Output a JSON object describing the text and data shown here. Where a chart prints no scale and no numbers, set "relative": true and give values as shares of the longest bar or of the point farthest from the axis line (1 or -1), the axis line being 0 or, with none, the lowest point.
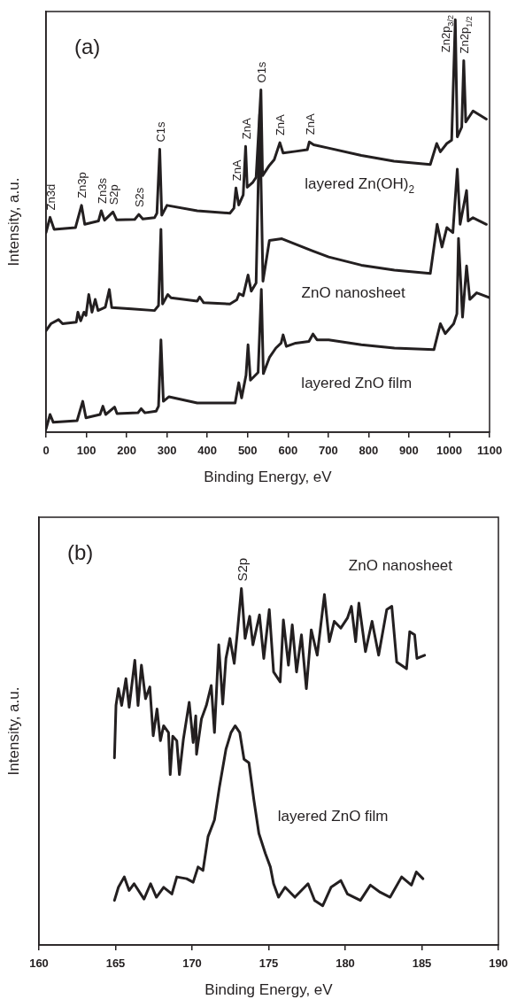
{
  "chart_data": [
    {
      "type": "line",
      "xlabel": "Binding Energy, eV",
      "ylabel": "Intensity, a.u.",
      "relative": true,
      "xlim": [
        0,
        1100
      ],
      "xticks": [
        0,
        100,
        200,
        300,
        400,
        500,
        600,
        700,
        800,
        900,
        1000,
        1100
      ],
      "tick_labels": "x",
      "legend": false,
      "grid": false,
      "marker": "none",
      "line_style": "solid",
      "annotations": [
        "(a)",
        {
          "text": "Zn3d",
          "x": 10,
          "y": 0.521
        },
        {
          "text": "Zn3p",
          "x": 88,
          "y": 0.55
        },
        {
          "text": "Zn3s",
          "x": 137,
          "y": 0.537
        },
        {
          "text": "S2p",
          "x": 166,
          "y": 0.534
        },
        {
          "text": "S2s",
          "x": 230,
          "y": 0.528
        },
        {
          "text": "C1s",
          "x": 282,
          "y": 0.686
        },
        {
          "text": "ZnA",
          "x": 471,
          "y": 0.592
        },
        {
          "text": "ZnA",
          "x": 495,
          "y": 0.693
        },
        {
          "text": "O1s",
          "x": 533,
          "y": 0.83
        },
        {
          "text": "ZnA",
          "x": 580,
          "y": 0.702
        },
        {
          "text": "ZnA",
          "x": 653,
          "y": 0.704
        },
        {
          "text": "Zn2p$_{3/2}$",
          "x": 1015,
          "y": 1.0
        },
        {
          "text": "Zn2p$_{1/2}$",
          "x": 1036,
          "y": 0.901
        }
      ],
      "series": [
        {
          "name": "layered Zn(OH)$_{2}$",
          "color": "#231f20",
          "x": [
            0,
            10,
            20,
            73,
            88,
            96,
            130,
            137,
            145,
            166,
            175,
            220,
            230,
            240,
            269,
            275,
            282,
            287,
            300,
            375,
            456,
            466,
            471,
            478,
            489,
            495,
            499,
            513,
            521,
            533,
            537,
            554,
            566,
            580,
            588,
            619,
            648,
            653,
            664,
            700,
            782,
            863,
            953,
            969,
            978,
            994,
            1006,
            1015,
            1020,
            1031,
            1036,
            1041,
            1059,
            1092
          ],
          "values": [
            0.484,
            0.521,
            0.492,
            0.496,
            0.55,
            0.504,
            0.512,
            0.537,
            0.514,
            0.534,
            0.515,
            0.516,
            0.528,
            0.517,
            0.52,
            0.531,
            0.686,
            0.526,
            0.55,
            0.537,
            0.531,
            0.543,
            0.592,
            0.551,
            0.575,
            0.693,
            0.594,
            0.606,
            0.618,
            0.83,
            0.622,
            0.647,
            0.661,
            0.702,
            0.677,
            0.681,
            0.685,
            0.704,
            0.697,
            0.689,
            0.671,
            0.657,
            0.649,
            0.7,
            0.68,
            0.7,
            0.708,
            1.0,
            0.716,
            0.74,
            0.901,
            0.752,
            0.779,
            0.759
          ]
        },
        {
          "name": "ZnO nanosheet",
          "color": "#231f20",
          "x": [
            0,
            12,
            31,
            41,
            75,
            79,
            86,
            94,
            99,
            106,
            114,
            122,
            129,
            147,
            157,
            163,
            212,
            269,
            279,
            285,
            289,
            302,
            310,
            375,
            381,
            391,
            456,
            473,
            479,
            489,
            501,
            509,
            521,
            530,
            538,
            554,
            585,
            660,
            701,
            782,
            864,
            953,
            970,
            982,
            994,
            1009,
            1020,
            1027,
            1043,
            1047,
            1059,
            1092
          ],
          "values": [
            0.246,
            0.263,
            0.273,
            0.263,
            0.267,
            0.291,
            0.27,
            0.291,
            0.283,
            0.334,
            0.291,
            0.322,
            0.295,
            0.303,
            0.346,
            0.302,
            0.299,
            0.295,
            0.307,
            0.492,
            0.311,
            0.334,
            0.326,
            0.318,
            0.328,
            0.314,
            0.311,
            0.321,
            0.336,
            0.331,
            0.381,
            0.342,
            0.362,
            0.771,
            0.366,
            0.465,
            0.469,
            0.44,
            0.425,
            0.405,
            0.393,
            0.385,
            0.504,
            0.449,
            0.496,
            0.484,
            0.638,
            0.504,
            0.586,
            0.512,
            0.52,
            0.504
          ]
        },
        {
          "name": "layered ZnO film",
          "color": "#231f20",
          "x": [
            0,
            10,
            18,
            77,
            91,
            99,
            134,
            141,
            148,
            170,
            176,
            228,
            236,
            245,
            273,
            279,
            285,
            291,
            305,
            375,
            469,
            478,
            485,
            496,
            501,
            507,
            526,
            534,
            539,
            554,
            570,
            583,
            588,
            596,
            619,
            652,
            662,
            672,
            701,
            782,
            864,
            962,
            978,
            990,
            1011,
            1019,
            1023,
            1033,
            1043,
            1051,
            1068,
            1100
          ],
          "values": [
            0.008,
            0.043,
            0.024,
            0.028,
            0.075,
            0.035,
            0.043,
            0.063,
            0.043,
            0.061,
            0.045,
            0.047,
            0.057,
            0.047,
            0.051,
            0.063,
            0.224,
            0.075,
            0.086,
            0.071,
            0.071,
            0.12,
            0.083,
            0.138,
            0.212,
            0.126,
            0.145,
            0.346,
            0.142,
            0.181,
            0.204,
            0.216,
            0.236,
            0.208,
            0.216,
            0.22,
            0.238,
            0.224,
            0.224,
            0.212,
            0.204,
            0.2,
            0.263,
            0.239,
            0.263,
            0.287,
            0.47,
            0.279,
            0.403,
            0.322,
            0.338,
            0.326
          ]
        }
      ]
    },
    {
      "type": "line",
      "xlabel": "Binding Energy, eV",
      "ylabel": "Intensity, a.u.",
      "relative": true,
      "xlim": [
        160,
        190
      ],
      "xticks": [
        160,
        165,
        170,
        175,
        180,
        185,
        190
      ],
      "tick_labels": "x",
      "legend": false,
      "grid": false,
      "marker": "none",
      "line_style": "solid",
      "annotations": [
        "(b)",
        {
          "text": "S2p",
          "x": 173.22,
          "y": 1.0
        }
      ],
      "series": [
        {
          "name": "ZnO nanosheet",
          "color": "#231f20",
          "x": [
            164.93,
            165.03,
            165.19,
            165.4,
            165.68,
            165.89,
            166.26,
            166.47,
            166.69,
            166.96,
            167.24,
            167.46,
            167.71,
            167.93,
            168.14,
            168.46,
            168.57,
            168.74,
            169.0,
            169.17,
            169.43,
            169.81,
            170.07,
            170.24,
            170.29,
            170.61,
            170.93,
            171.25,
            171.46,
            171.74,
            172.0,
            172.21,
            172.47,
            172.75,
            172.96,
            173.22,
            173.46,
            173.76,
            173.97,
            174.4,
            174.68,
            175.04,
            175.32,
            175.75,
            175.96,
            176.29,
            176.54,
            176.82,
            177.14,
            177.46,
            177.78,
            178.17,
            178.64,
            178.96,
            179.28,
            179.71,
            180.14,
            180.4,
            180.68,
            180.89,
            181.32,
            181.75,
            182.18,
            182.71,
            183.04,
            183.36,
            184.0,
            184.21,
            184.53,
            184.68,
            185.18
          ],
          "values": [
            0.525,
            0.672,
            0.719,
            0.672,
            0.747,
            0.667,
            0.799,
            0.672,
            0.785,
            0.691,
            0.724,
            0.587,
            0.662,
            0.573,
            0.615,
            0.596,
            0.478,
            0.586,
            0.573,
            0.478,
            0.577,
            0.681,
            0.568,
            0.643,
            0.535,
            0.634,
            0.672,
            0.728,
            0.596,
            0.842,
            0.676,
            0.804,
            0.86,
            0.79,
            0.879,
            1.0,
            0.86,
            0.922,
            0.842,
            0.926,
            0.804,
            0.941,
            0.766,
            0.738,
            0.912,
            0.785,
            0.898,
            0.766,
            0.87,
            0.719,
            0.884,
            0.813,
            0.983,
            0.851,
            0.908,
            0.889,
            0.917,
            0.95,
            0.851,
            0.959,
            0.823,
            0.908,
            0.813,
            0.941,
            0.95,
            0.794,
            0.775,
            0.879,
            0.87,
            0.804,
            0.813
          ]
        },
        {
          "name": "layered ZnO film",
          "color": "#231f20",
          "x": [
            164.93,
            165.19,
            165.57,
            165.89,
            166.21,
            166.86,
            167.29,
            167.67,
            168.14,
            168.68,
            169.0,
            169.64,
            170.07,
            170.39,
            170.71,
            171.04,
            171.46,
            171.79,
            172.21,
            172.54,
            172.81,
            173.11,
            173.39,
            173.71,
            174.03,
            174.36,
            174.78,
            175.11,
            175.32,
            175.64,
            176.07,
            176.71,
            177.57,
            178.0,
            178.53,
            179.07,
            179.71,
            180.14,
            180.99,
            181.64,
            182.28,
            182.93,
            183.68,
            184.32,
            184.64,
            185.07
          ],
          "values": [
            0.125,
            0.162,
            0.191,
            0.153,
            0.172,
            0.129,
            0.172,
            0.134,
            0.162,
            0.143,
            0.191,
            0.186,
            0.176,
            0.219,
            0.209,
            0.304,
            0.351,
            0.445,
            0.549,
            0.596,
            0.615,
            0.596,
            0.521,
            0.511,
            0.408,
            0.313,
            0.257,
            0.219,
            0.172,
            0.134,
            0.162,
            0.134,
            0.172,
            0.125,
            0.11,
            0.162,
            0.181,
            0.143,
            0.125,
            0.168,
            0.148,
            0.134,
            0.191,
            0.168,
            0.205,
            0.186
          ]
        }
      ]
    }
  ]
}
